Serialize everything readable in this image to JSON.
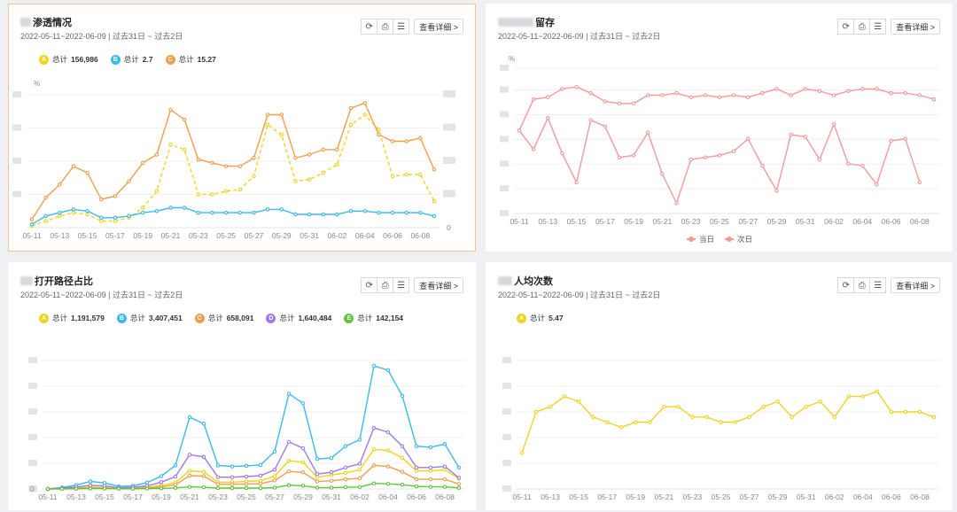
{
  "colors": {
    "yellow": "#f2d21f",
    "blue": "#3bb8ec",
    "orange": "#ef9f4c",
    "purple": "#a07ae6",
    "green": "#60c43c",
    "pink": "#f2999b"
  },
  "common": {
    "date_range": "2022-05-11~2022-06-09 | 过去31日 ~ 过去2日",
    "detail_label": "查看详细 >",
    "refresh_icon": "⟳",
    "export_icon": "⎙",
    "menu_icon": "☰",
    "x_ticks": [
      "05-11",
      "05-13",
      "05-15",
      "05-17",
      "05-19",
      "05-21",
      "05-23",
      "05-25",
      "05-27",
      "05-29",
      "05-31",
      "06-02",
      "06-04",
      "06-06",
      "06-08"
    ]
  },
  "panels": [
    {
      "title": "渗透情况",
      "unit": "%",
      "legend": [
        {
          "badge": "A",
          "label": "总计",
          "value": "156,986",
          "color": "#f2d21f"
        },
        {
          "badge": "B",
          "label": "总计",
          "value": "2.7",
          "color": "#3bb8ec"
        },
        {
          "badge": "C",
          "label": "总计",
          "value": "15.27",
          "color": "#ef9f4c"
        }
      ],
      "right_zero": "0"
    },
    {
      "title": "留存",
      "unit": "%",
      "bottom_legend": [
        "当日",
        "次日"
      ]
    },
    {
      "title": "打开路径占比",
      "legend": [
        {
          "badge": "A",
          "label": "总计",
          "value": "1,191,579",
          "color": "#f2d21f"
        },
        {
          "badge": "B",
          "label": "总计",
          "value": "3,407,451",
          "color": "#3bb8ec"
        },
        {
          "badge": "C",
          "label": "总计",
          "value": "658,091",
          "color": "#ef9f4c"
        },
        {
          "badge": "D",
          "label": "总计",
          "value": "1,640,484",
          "color": "#a07ae6"
        },
        {
          "badge": "E",
          "label": "总计",
          "value": "142,154",
          "color": "#60c43c"
        }
      ],
      "y_zero": "0"
    },
    {
      "title": "人均次数",
      "legend": [
        {
          "badge": "A",
          "label": "总计",
          "value": "5.47",
          "color": "#f2d21f"
        }
      ]
    }
  ],
  "chart_data": [
    {
      "type": "line",
      "title": "渗透情况",
      "x": [
        "05-11",
        "05-12",
        "05-13",
        "05-14",
        "05-15",
        "05-16",
        "05-17",
        "05-18",
        "05-19",
        "05-20",
        "05-21",
        "05-22",
        "05-23",
        "05-24",
        "05-25",
        "05-26",
        "05-27",
        "05-28",
        "05-29",
        "05-30",
        "05-31",
        "06-01",
        "06-02",
        "06-03",
        "06-04",
        "06-05",
        "06-06",
        "06-07",
        "06-08",
        "06-09"
      ],
      "series": [
        {
          "name": "A",
          "color": "#f2d21f",
          "dashed": true,
          "values": [
            1,
            4,
            7,
            9,
            8,
            4,
            4,
            6,
            12,
            22,
            50,
            47,
            20,
            20,
            22,
            23,
            31,
            62,
            56,
            28,
            29,
            33,
            38,
            62,
            68,
            59,
            31,
            32,
            32,
            16
          ]
        },
        {
          "name": "B",
          "color": "#3bb8ec",
          "values": [
            2,
            7,
            9,
            11,
            10,
            6,
            6,
            7,
            9,
            10,
            12,
            12,
            9,
            9,
            9,
            9,
            9,
            11,
            11,
            8,
            8,
            8,
            8,
            10,
            10,
            9,
            9,
            9,
            9,
            7
          ]
        },
        {
          "name": "C",
          "color": "#ef9f4c",
          "values": [
            5,
            18,
            26,
            37,
            33,
            17,
            19,
            28,
            39,
            44,
            71,
            65,
            41,
            39,
            37,
            37,
            42,
            68,
            68,
            42,
            44,
            47,
            47,
            72,
            75,
            56,
            52,
            52,
            54,
            35
          ]
        }
      ]
    },
    {
      "type": "line",
      "title": "留存",
      "x": [
        "05-11",
        "05-12",
        "05-13",
        "05-14",
        "05-15",
        "05-16",
        "05-17",
        "05-18",
        "05-19",
        "05-20",
        "05-21",
        "05-22",
        "05-23",
        "05-24",
        "05-25",
        "05-26",
        "05-27",
        "05-28",
        "05-29",
        "05-30",
        "05-31",
        "06-01",
        "06-02",
        "06-03",
        "06-04",
        "06-05",
        "06-06",
        "06-07",
        "06-08",
        "06-09"
      ],
      "series": [
        {
          "name": "当日",
          "color": "#f2999b",
          "values": [
            60,
            75,
            76,
            80,
            81,
            78,
            74,
            73,
            73,
            77,
            77,
            78,
            76,
            77,
            76,
            77,
            76,
            78,
            80,
            77,
            80,
            79,
            77,
            79,
            80,
            80,
            78,
            78,
            77,
            75
          ]
        },
        {
          "name": "次日",
          "color": "#f2999b",
          "values": [
            60,
            51,
            66,
            49,
            35,
            65,
            62,
            47,
            48,
            59,
            39,
            25,
            46,
            47,
            48,
            50,
            56,
            43,
            31,
            58,
            57,
            46,
            63,
            44,
            43,
            34,
            55,
            56,
            35,
            null
          ]
        }
      ]
    },
    {
      "type": "line",
      "title": "打开路径占比",
      "x": [
        "05-11",
        "05-12",
        "05-13",
        "05-14",
        "05-15",
        "05-16",
        "05-17",
        "05-18",
        "05-19",
        "05-20",
        "05-21",
        "05-22",
        "05-23",
        "05-24",
        "05-25",
        "05-26",
        "05-27",
        "05-28",
        "05-29",
        "05-30",
        "05-31",
        "06-01",
        "06-02",
        "06-03",
        "06-04",
        "06-05",
        "06-06",
        "06-07",
        "06-08",
        "06-09"
      ],
      "y_zero": "0",
      "series": [
        {
          "name": "A",
          "color": "#f2d21f",
          "values": [
            0,
            0.3,
            0.5,
            0.8,
            0.7,
            0.4,
            0.5,
            0.8,
            1.6,
            3.0,
            8.5,
            8.0,
            3.2,
            3.2,
            3.5,
            3.8,
            6.0,
            13.2,
            12.5,
            5.5,
            6.5,
            7.5,
            9.0,
            18.5,
            18.0,
            14.5,
            8.5,
            8.5,
            9.0,
            4.8
          ]
        },
        {
          "name": "B",
          "color": "#3bb8ec",
          "values": [
            0,
            0.7,
            1.8,
            3.5,
            2.8,
            1.2,
            1.5,
            3.0,
            6.0,
            11.0,
            33.5,
            30.5,
            11.0,
            10.5,
            10.8,
            11.2,
            17.5,
            44.5,
            40.0,
            14.0,
            14.5,
            20.0,
            23.0,
            57.5,
            55.5,
            43.5,
            20.0,
            19.5,
            21.0,
            10.0
          ]
        },
        {
          "name": "C",
          "color": "#ef9f4c",
          "values": [
            0,
            0.2,
            0.3,
            0.5,
            0.4,
            0.2,
            0.3,
            0.5,
            1.0,
            2.0,
            6.2,
            6.0,
            2.2,
            2.2,
            2.3,
            2.5,
            4.0,
            8.2,
            7.8,
            3.5,
            3.8,
            4.5,
            5.0,
            11.0,
            10.5,
            8.0,
            4.5,
            4.5,
            4.5,
            2.3
          ]
        },
        {
          "name": "D",
          "color": "#a07ae6",
          "values": [
            0,
            0.5,
            0.9,
            1.7,
            1.4,
            0.6,
            0.8,
            1.5,
            3.2,
            5.8,
            16.0,
            15.0,
            5.5,
            5.5,
            5.8,
            6.2,
            9.0,
            22.0,
            19.0,
            7.0,
            7.8,
            10.0,
            11.8,
            28.5,
            26.5,
            20.0,
            10.0,
            10.0,
            10.5,
            5.2
          ]
        },
        {
          "name": "E",
          "color": "#60c43c",
          "values": [
            0,
            0.05,
            0.1,
            0.2,
            0.2,
            0.1,
            0.1,
            0.2,
            0.3,
            0.5,
            1.0,
            0.8,
            0.4,
            0.4,
            0.4,
            0.4,
            0.6,
            1.8,
            1.5,
            0.6,
            0.6,
            0.8,
            0.9,
            2.6,
            2.4,
            2.0,
            1.2,
            1.0,
            1.0,
            0.5
          ]
        }
      ]
    },
    {
      "type": "line",
      "title": "人均次数",
      "x": [
        "05-11",
        "05-12",
        "05-13",
        "05-14",
        "05-15",
        "05-16",
        "05-17",
        "05-18",
        "05-19",
        "05-20",
        "05-21",
        "05-22",
        "05-23",
        "05-24",
        "05-25",
        "05-26",
        "05-27",
        "05-28",
        "05-29",
        "05-30",
        "05-31",
        "06-01",
        "06-02",
        "06-03",
        "06-04",
        "06-05",
        "06-06",
        "06-07",
        "06-08",
        "06-09"
      ],
      "series": [
        {
          "name": "A",
          "color": "#f2d21f",
          "values": [
            4.7,
            5.5,
            5.6,
            5.8,
            5.7,
            5.4,
            5.3,
            5.2,
            5.3,
            5.3,
            5.6,
            5.6,
            5.4,
            5.4,
            5.3,
            5.3,
            5.4,
            5.6,
            5.7,
            5.4,
            5.6,
            5.7,
            5.4,
            5.8,
            5.8,
            5.9,
            5.5,
            5.5,
            5.5,
            5.4
          ]
        }
      ]
    }
  ]
}
